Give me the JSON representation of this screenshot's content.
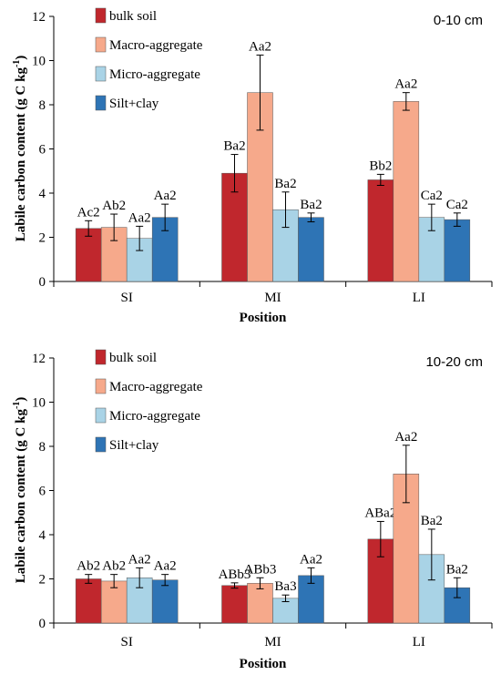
{
  "chart_data": [
    {
      "type": "bar",
      "annotation": "0-10 cm",
      "xlabel": "Position",
      "ylabel": "Labile carbon content (g C kg",
      "ylabel_sup": "-1",
      "ylabel_close": ")",
      "ylim": [
        0,
        12
      ],
      "yticks": [
        "0",
        "2",
        "4",
        "6",
        "8",
        "10",
        "12"
      ],
      "categories": [
        "SI",
        "MI",
        "LI"
      ],
      "series": [
        {
          "name": "bulk soil",
          "color": "#C0272D",
          "values": [
            2.4,
            4.9,
            4.6
          ],
          "errors": [
            0.35,
            0.85,
            0.25
          ],
          "labels": [
            "Ac2",
            "Ba2",
            "Bb2"
          ]
        },
        {
          "name": "Macro-aggregate",
          "color": "#F6A98B",
          "values": [
            2.45,
            8.55,
            8.15
          ],
          "errors": [
            0.6,
            1.7,
            0.4
          ],
          "labels": [
            "Ab2",
            "Aa2",
            "Aa2"
          ]
        },
        {
          "name": "Micro-aggregate",
          "color": "#A9D3E6",
          "values": [
            1.95,
            3.25,
            2.9
          ],
          "errors": [
            0.55,
            0.8,
            0.6
          ],
          "labels": [
            "Aa2",
            "Ba2",
            "Ca2"
          ]
        },
        {
          "name": "Silt+clay",
          "color": "#2E74B5",
          "values": [
            2.9,
            2.9,
            2.8
          ],
          "errors": [
            0.6,
            0.2,
            0.3
          ],
          "labels": [
            "Aa2",
            "Ba2",
            "Ca2"
          ]
        }
      ],
      "legend_position": "top-left"
    },
    {
      "type": "bar",
      "annotation": "10-20 cm",
      "xlabel": "Position",
      "ylabel": "Labile carbon content (g C kg",
      "ylabel_sup": "-1",
      "ylabel_close": ")",
      "ylim": [
        0,
        12
      ],
      "yticks": [
        "0",
        "2",
        "4",
        "6",
        "8",
        "10",
        "12"
      ],
      "categories": [
        "SI",
        "MI",
        "LI"
      ],
      "series": [
        {
          "name": "bulk soil",
          "color": "#C0272D",
          "values": [
            2.0,
            1.7,
            3.8
          ],
          "errors": [
            0.2,
            0.12,
            0.8
          ],
          "labels": [
            "Ab2",
            "ABb3",
            "ABa2"
          ]
        },
        {
          "name": "Macro-aggregate",
          "color": "#F6A98B",
          "values": [
            1.9,
            1.8,
            6.75
          ],
          "errors": [
            0.3,
            0.25,
            1.3
          ],
          "labels": [
            "Ab2",
            "ABb3",
            "Aa2"
          ]
        },
        {
          "name": "Micro-aggregate",
          "color": "#A9D3E6",
          "values": [
            2.05,
            1.12,
            3.1
          ],
          "errors": [
            0.45,
            0.15,
            1.15
          ],
          "labels": [
            "Aa2",
            "Ba3",
            "Ba2"
          ]
        },
        {
          "name": "Silt+clay",
          "color": "#2E74B5",
          "values": [
            1.95,
            2.15,
            1.6
          ],
          "errors": [
            0.25,
            0.35,
            0.45
          ],
          "labels": [
            "Aa2",
            "Aa2",
            "Ba2"
          ]
        }
      ],
      "legend_position": "top-left"
    }
  ]
}
